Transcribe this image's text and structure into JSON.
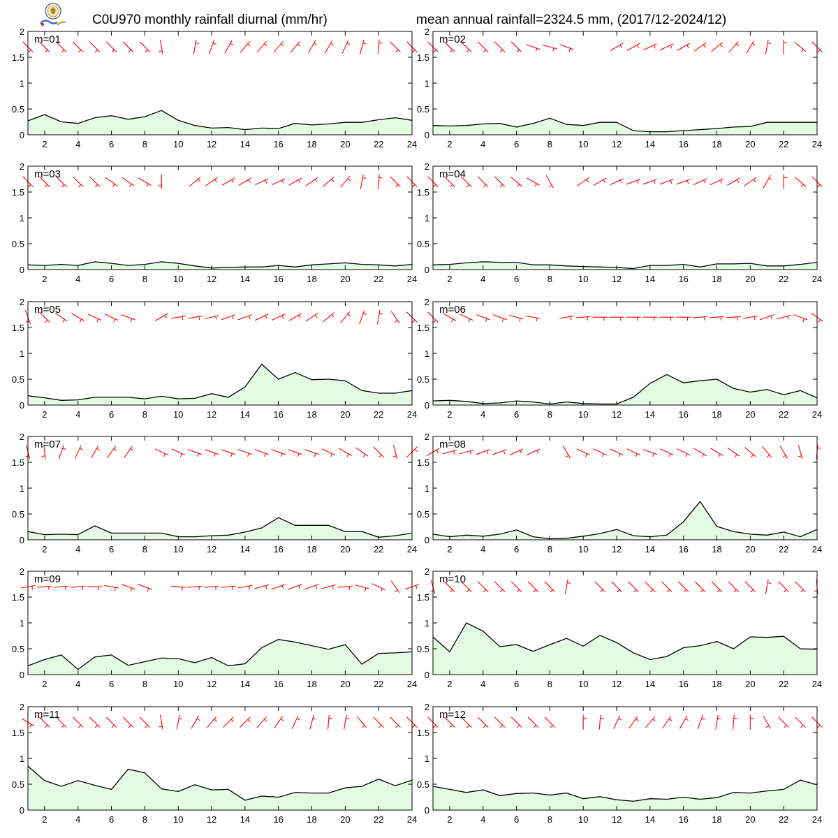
{
  "title_left": "C0U970 monthly rainfall diurnal (mm/hr)",
  "title_right": "mean annual rainfall=2324.5 mm, (2017/12-2024/12)",
  "colors": {
    "line": "#000000",
    "fill": "#e2fbe2",
    "wind": "#ff0000",
    "frame": "#000000"
  },
  "chart_data": [
    {
      "type": "area",
      "label": "m=01",
      "x": [
        1,
        2,
        3,
        4,
        5,
        6,
        7,
        8,
        9,
        10,
        11,
        12,
        13,
        14,
        15,
        16,
        17,
        18,
        19,
        20,
        21,
        22,
        23,
        24
      ],
      "ylim": [
        0,
        2
      ],
      "yticks": [
        0,
        0.5,
        1,
        1.5,
        2
      ],
      "xticks": [
        2,
        4,
        6,
        8,
        10,
        12,
        14,
        16,
        18,
        20,
        22,
        24
      ],
      "values": [
        0.27,
        0.39,
        0.25,
        0.22,
        0.33,
        0.37,
        0.3,
        0.35,
        0.47,
        0.28,
        0.18,
        0.13,
        0.14,
        0.1,
        0.13,
        0.12,
        0.22,
        0.19,
        0.21,
        0.24,
        0.24,
        0.29,
        0.33,
        0.28
      ],
      "wind_angles": [
        135,
        135,
        135,
        135,
        135,
        135,
        135,
        135,
        170,
        null,
        10,
        20,
        30,
        40,
        40,
        40,
        40,
        30,
        30,
        25,
        15,
        5,
        135,
        135
      ]
    },
    {
      "type": "area",
      "label": "m=02",
      "x": [
        1,
        2,
        3,
        4,
        5,
        6,
        7,
        8,
        9,
        10,
        11,
        12,
        13,
        14,
        15,
        16,
        17,
        18,
        19,
        20,
        21,
        22,
        23,
        24
      ],
      "ylim": [
        0,
        2
      ],
      "yticks": [
        0,
        0.5,
        1,
        1.5,
        2
      ],
      "xticks": [
        2,
        4,
        6,
        8,
        10,
        12,
        14,
        16,
        18,
        20,
        22,
        24
      ],
      "values": [
        0.18,
        0.17,
        0.18,
        0.21,
        0.22,
        0.15,
        0.22,
        0.32,
        0.2,
        0.18,
        0.24,
        0.24,
        0.08,
        0.06,
        0.06,
        0.08,
        0.1,
        0.12,
        0.15,
        0.16,
        0.24,
        0.24,
        0.24,
        0.24
      ],
      "wind_angles": [
        135,
        135,
        135,
        135,
        135,
        135,
        110,
        105,
        110,
        null,
        null,
        60,
        60,
        65,
        65,
        60,
        55,
        50,
        40,
        30,
        10,
        0,
        130,
        135
      ]
    },
    {
      "type": "area",
      "label": "m=03",
      "x": [
        1,
        2,
        3,
        4,
        5,
        6,
        7,
        8,
        9,
        10,
        11,
        12,
        13,
        14,
        15,
        16,
        17,
        18,
        19,
        20,
        21,
        22,
        23,
        24
      ],
      "ylim": [
        0,
        2
      ],
      "yticks": [
        0,
        0.5,
        1,
        1.5,
        2
      ],
      "xticks": [
        2,
        4,
        6,
        8,
        10,
        12,
        14,
        16,
        18,
        20,
        22,
        24
      ],
      "values": [
        0.09,
        0.08,
        0.1,
        0.08,
        0.15,
        0.12,
        0.08,
        0.1,
        0.15,
        0.12,
        0.07,
        0.03,
        0.04,
        0.05,
        0.05,
        0.08,
        0.05,
        0.09,
        0.11,
        0.13,
        0.1,
        0.09,
        0.07,
        0.1
      ],
      "wind_angles": [
        135,
        135,
        135,
        135,
        135,
        125,
        125,
        120,
        180,
        null,
        50,
        55,
        60,
        60,
        65,
        65,
        60,
        55,
        50,
        40,
        10,
        5,
        135,
        135
      ]
    },
    {
      "type": "area",
      "label": "m=04",
      "x": [
        1,
        2,
        3,
        4,
        5,
        6,
        7,
        8,
        9,
        10,
        11,
        12,
        13,
        14,
        15,
        16,
        17,
        18,
        19,
        20,
        21,
        22,
        23,
        24
      ],
      "ylim": [
        0,
        2
      ],
      "yticks": [
        0,
        0.5,
        1,
        1.5,
        2
      ],
      "xticks": [
        2,
        4,
        6,
        8,
        10,
        12,
        14,
        16,
        18,
        20,
        22,
        24
      ],
      "values": [
        0.09,
        0.1,
        0.13,
        0.15,
        0.14,
        0.14,
        0.09,
        0.09,
        0.07,
        0.06,
        0.05,
        0.04,
        0.02,
        0.08,
        0.08,
        0.1,
        0.05,
        0.11,
        0.11,
        0.12,
        0.07,
        0.07,
        0.1,
        0.14
      ],
      "wind_angles": [
        135,
        135,
        135,
        135,
        135,
        130,
        120,
        150,
        null,
        55,
        60,
        65,
        70,
        70,
        70,
        70,
        65,
        65,
        60,
        55,
        30,
        0,
        130,
        135
      ]
    },
    {
      "type": "area",
      "label": "m=05",
      "x": [
        1,
        2,
        3,
        4,
        5,
        6,
        7,
        8,
        9,
        10,
        11,
        12,
        13,
        14,
        15,
        16,
        17,
        18,
        19,
        20,
        21,
        22,
        23,
        24
      ],
      "ylim": [
        0,
        2
      ],
      "yticks": [
        0,
        0.5,
        1,
        1.5,
        2
      ],
      "xticks": [
        2,
        4,
        6,
        8,
        10,
        12,
        14,
        16,
        18,
        20,
        22,
        24
      ],
      "values": [
        0.18,
        0.14,
        0.09,
        0.1,
        0.15,
        0.15,
        0.15,
        0.12,
        0.17,
        0.12,
        0.13,
        0.22,
        0.15,
        0.35,
        0.79,
        0.5,
        0.63,
        0.49,
        0.5,
        0.47,
        0.28,
        0.23,
        0.23,
        0.28
      ],
      "wind_angles": [
        160,
        135,
        125,
        120,
        115,
        115,
        110,
        null,
        60,
        80,
        80,
        75,
        70,
        70,
        65,
        65,
        60,
        55,
        50,
        40,
        20,
        10,
        145,
        135
      ]
    },
    {
      "type": "area",
      "label": "m=06",
      "x": [
        1,
        2,
        3,
        4,
        5,
        6,
        7,
        8,
        9,
        10,
        11,
        12,
        13,
        14,
        15,
        16,
        17,
        18,
        19,
        20,
        21,
        22,
        23,
        24
      ],
      "ylim": [
        0,
        2
      ],
      "yticks": [
        0,
        0.5,
        1,
        1.5,
        2
      ],
      "xticks": [
        2,
        4,
        6,
        8,
        10,
        12,
        14,
        16,
        18,
        20,
        22,
        24
      ],
      "values": [
        0.08,
        0.09,
        0.07,
        0.03,
        0.04,
        0.08,
        0.06,
        0.02,
        0.06,
        0.03,
        0.02,
        0.02,
        0.15,
        0.42,
        0.59,
        0.43,
        0.47,
        0.5,
        0.32,
        0.25,
        0.3,
        0.2,
        0.28,
        0.14
      ],
      "wind_angles": [
        135,
        120,
        115,
        110,
        110,
        105,
        100,
        null,
        80,
        85,
        90,
        90,
        90,
        90,
        90,
        90,
        85,
        85,
        85,
        80,
        70,
        75,
        110,
        125
      ]
    },
    {
      "type": "area",
      "label": "m=07",
      "x": [
        1,
        2,
        3,
        4,
        5,
        6,
        7,
        8,
        9,
        10,
        11,
        12,
        13,
        14,
        15,
        16,
        17,
        18,
        19,
        20,
        21,
        22,
        23,
        24
      ],
      "ylim": [
        0,
        2
      ],
      "yticks": [
        0,
        0.5,
        1,
        1.5,
        2
      ],
      "xticks": [
        2,
        4,
        6,
        8,
        10,
        12,
        14,
        16,
        18,
        20,
        22,
        24
      ],
      "values": [
        0.16,
        0.1,
        0.11,
        0.1,
        0.27,
        0.13,
        0.13,
        0.13,
        0.13,
        0.06,
        0.06,
        0.08,
        0.09,
        0.15,
        0.23,
        0.43,
        0.28,
        0.28,
        0.28,
        0.16,
        0.16,
        0.05,
        0.08,
        0.13
      ],
      "wind_angles": [
        165,
        175,
        20,
        25,
        30,
        35,
        35,
        null,
        115,
        115,
        110,
        110,
        110,
        110,
        110,
        110,
        110,
        110,
        115,
        120,
        125,
        135,
        165,
        45
      ]
    },
    {
      "type": "area",
      "label": "m=08",
      "x": [
        1,
        2,
        3,
        4,
        5,
        6,
        7,
        8,
        9,
        10,
        11,
        12,
        13,
        14,
        15,
        16,
        17,
        18,
        19,
        20,
        21,
        22,
        23,
        24
      ],
      "ylim": [
        0,
        2
      ],
      "yticks": [
        0,
        0.5,
        1,
        1.5,
        2
      ],
      "xticks": [
        2,
        4,
        6,
        8,
        10,
        12,
        14,
        16,
        18,
        20,
        22,
        24
      ],
      "values": [
        0.11,
        0.06,
        0.09,
        0.07,
        0.11,
        0.19,
        0.06,
        0.02,
        0.03,
        0.07,
        0.12,
        0.2,
        0.08,
        0.06,
        0.09,
        0.35,
        0.74,
        0.26,
        0.16,
        0.11,
        0.09,
        0.15,
        0.06,
        0.2
      ],
      "wind_angles": [
        60,
        75,
        75,
        70,
        70,
        65,
        65,
        null,
        150,
        115,
        115,
        115,
        115,
        110,
        115,
        115,
        120,
        120,
        125,
        130,
        140,
        150,
        165,
        5
      ]
    },
    {
      "type": "area",
      "label": "m=09",
      "x": [
        1,
        2,
        3,
        4,
        5,
        6,
        7,
        8,
        9,
        10,
        11,
        12,
        13,
        14,
        15,
        16,
        17,
        18,
        19,
        20,
        21,
        22,
        23,
        24
      ],
      "ylim": [
        0,
        2
      ],
      "yticks": [
        0,
        0.5,
        1,
        1.5,
        2
      ],
      "xticks": [
        2,
        4,
        6,
        8,
        10,
        12,
        14,
        16,
        18,
        20,
        22,
        24
      ],
      "values": [
        0.17,
        0.29,
        0.38,
        0.1,
        0.34,
        0.38,
        0.18,
        0.25,
        0.32,
        0.31,
        0.23,
        0.33,
        0.17,
        0.21,
        0.52,
        0.68,
        0.63,
        0.56,
        0.49,
        0.58,
        0.2,
        0.41,
        0.42,
        0.44
      ],
      "wind_angles": [
        80,
        85,
        85,
        85,
        90,
        100,
        110,
        110,
        null,
        95,
        85,
        85,
        85,
        80,
        75,
        70,
        70,
        70,
        75,
        85,
        105,
        115,
        145,
        70
      ]
    },
    {
      "type": "area",
      "label": "m=10",
      "x": [
        1,
        2,
        3,
        4,
        5,
        6,
        7,
        8,
        9,
        10,
        11,
        12,
        13,
        14,
        15,
        16,
        17,
        18,
        19,
        20,
        21,
        22,
        23,
        24
      ],
      "ylim": [
        0,
        2
      ],
      "yticks": [
        0,
        0.5,
        1,
        1.5,
        2
      ],
      "xticks": [
        2,
        4,
        6,
        8,
        10,
        12,
        14,
        16,
        18,
        20,
        22,
        24
      ],
      "values": [
        0.73,
        0.44,
        1.0,
        0.84,
        0.54,
        0.58,
        0.45,
        0.58,
        0.7,
        0.55,
        0.76,
        0.62,
        0.42,
        0.29,
        0.35,
        0.52,
        0.56,
        0.64,
        0.5,
        0.73,
        0.72,
        0.74,
        0.5,
        0.49
      ],
      "wind_angles": [
        165,
        135,
        135,
        135,
        135,
        135,
        135,
        135,
        10,
        null,
        135,
        135,
        135,
        135,
        135,
        135,
        135,
        135,
        135,
        135,
        10,
        135,
        135,
        175
      ]
    },
    {
      "type": "area",
      "label": "m=11",
      "x": [
        1,
        2,
        3,
        4,
        5,
        6,
        7,
        8,
        9,
        10,
        11,
        12,
        13,
        14,
        15,
        16,
        17,
        18,
        19,
        20,
        21,
        22,
        23,
        24
      ],
      "ylim": [
        0,
        2
      ],
      "yticks": [
        0,
        0.5,
        1,
        1.5,
        2
      ],
      "xticks": [
        2,
        4,
        6,
        8,
        10,
        12,
        14,
        16,
        18,
        20,
        22,
        24
      ],
      "values": [
        0.85,
        0.57,
        0.46,
        0.57,
        0.48,
        0.4,
        0.79,
        0.72,
        0.41,
        0.36,
        0.49,
        0.39,
        0.4,
        0.19,
        0.27,
        0.25,
        0.34,
        0.33,
        0.33,
        0.43,
        0.46,
        0.6,
        0.47,
        0.58
      ],
      "wind_angles": [
        120,
        135,
        135,
        135,
        135,
        135,
        135,
        135,
        170,
        10,
        30,
        40,
        45,
        45,
        40,
        35,
        25,
        15,
        5,
        10,
        140,
        135,
        135,
        135
      ]
    },
    {
      "type": "area",
      "label": "m=12",
      "x": [
        1,
        2,
        3,
        4,
        5,
        6,
        7,
        8,
        9,
        10,
        11,
        12,
        13,
        14,
        15,
        16,
        17,
        18,
        19,
        20,
        21,
        22,
        23,
        24
      ],
      "ylim": [
        0,
        2
      ],
      "yticks": [
        0,
        0.5,
        1,
        1.5,
        2
      ],
      "xticks": [
        2,
        4,
        6,
        8,
        10,
        12,
        14,
        16,
        18,
        20,
        22,
        24
      ],
      "values": [
        0.46,
        0.4,
        0.34,
        0.39,
        0.28,
        0.32,
        0.33,
        0.29,
        0.33,
        0.22,
        0.26,
        0.2,
        0.17,
        0.22,
        0.21,
        0.25,
        0.21,
        0.24,
        0.34,
        0.33,
        0.37,
        0.4,
        0.58,
        0.49
      ],
      "wind_angles": [
        135,
        135,
        135,
        135,
        135,
        135,
        135,
        135,
        null,
        0,
        5,
        25,
        35,
        40,
        35,
        30,
        20,
        10,
        5,
        0,
        150,
        135,
        135,
        135
      ]
    }
  ]
}
